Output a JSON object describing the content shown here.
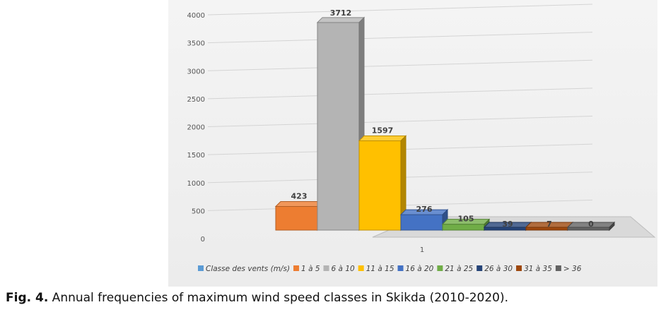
{
  "chart_data": {
    "type": "bar",
    "style": "3d-clustered-column",
    "categories": [
      "1"
    ],
    "ylim": [
      0,
      4000
    ],
    "yticks": [
      0,
      500,
      1000,
      1500,
      2000,
      2500,
      3000,
      3500,
      4000
    ],
    "grid": true,
    "legend_position": "bottom",
    "series": [
      {
        "name": "Classe des vents (m/s)",
        "values": [
          null
        ],
        "color": "#5b9bd5"
      },
      {
        "name": "1 à 5",
        "values": [
          423
        ],
        "color": "#ed7d31"
      },
      {
        "name": "6 à 10",
        "values": [
          3712
        ],
        "color": "#b4b4b4"
      },
      {
        "name": "11 à 15",
        "values": [
          1597
        ],
        "color": "#ffc000"
      },
      {
        "name": "16 à 20",
        "values": [
          276
        ],
        "color": "#4472c4"
      },
      {
        "name": "21 à 25",
        "values": [
          105
        ],
        "color": "#70ad47"
      },
      {
        "name": "26 à 30",
        "values": [
          39
        ],
        "color": "#264478"
      },
      {
        "name": "31 à 35",
        "values": [
          7
        ],
        "color": "#9e480e"
      },
      {
        "name": "> 36",
        "values": [
          0
        ],
        "color": "#636363"
      }
    ]
  },
  "caption": {
    "label": "Fig. 4.",
    "text": " Annual frequencies of maximum wind speed classes in Skikda (2010-2020)."
  }
}
